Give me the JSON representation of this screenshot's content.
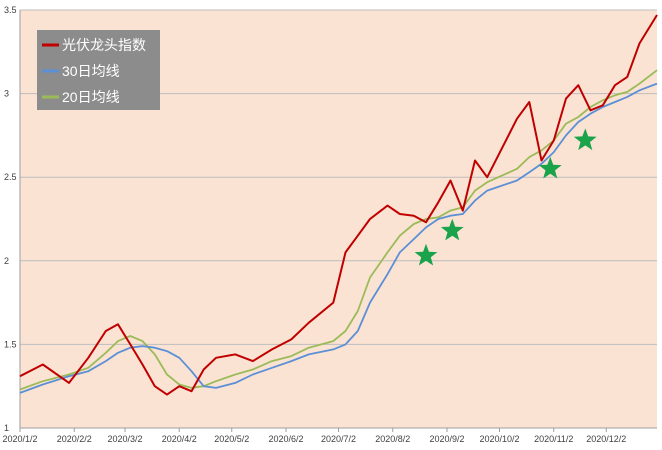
{
  "chart_data": {
    "type": "line",
    "title": "",
    "xlabel": "",
    "ylabel": "",
    "ylim": [
      1,
      3.5
    ],
    "yticks": [
      "1",
      "1.5",
      "2",
      "2.5",
      "3",
      "3.5"
    ],
    "xticks": [
      "2020/1/2",
      "2020/2/2",
      "2020/3/2",
      "2020/4/2",
      "2020/5/2",
      "2020/6/2",
      "2020/7/2",
      "2020/8/2",
      "2020/9/2",
      "2020/10/2",
      "2020/11/2",
      "2020/12/2"
    ],
    "grid": "horizontal",
    "legend_position": "top-left",
    "plot_background": "#fbe3d3",
    "x": [
      "2020-01-02",
      "2020-01-15",
      "2020-01-30",
      "2020-02-10",
      "2020-02-20",
      "2020-02-27",
      "2020-03-05",
      "2020-03-12",
      "2020-03-19",
      "2020-03-26",
      "2020-04-02",
      "2020-04-09",
      "2020-04-16",
      "2020-04-23",
      "2020-05-04",
      "2020-05-14",
      "2020-05-25",
      "2020-06-05",
      "2020-06-15",
      "2020-06-29",
      "2020-07-06",
      "2020-07-13",
      "2020-07-20",
      "2020-07-30",
      "2020-08-06",
      "2020-08-14",
      "2020-08-21",
      "2020-08-28",
      "2020-09-04",
      "2020-09-11",
      "2020-09-18",
      "2020-09-25",
      "2020-10-12",
      "2020-10-19",
      "2020-10-26",
      "2020-11-02",
      "2020-11-09",
      "2020-11-16",
      "2020-11-23",
      "2020-11-30",
      "2020-12-07",
      "2020-12-14",
      "2020-12-21",
      "2020-12-31"
    ],
    "series": [
      {
        "name": "光伏龙头指数",
        "color": "#c00000",
        "values": [
          1.31,
          1.38,
          1.27,
          1.42,
          1.58,
          1.62,
          1.5,
          1.38,
          1.25,
          1.2,
          1.25,
          1.22,
          1.35,
          1.42,
          1.44,
          1.4,
          1.47,
          1.53,
          1.63,
          1.75,
          2.05,
          2.15,
          2.25,
          2.33,
          2.28,
          2.27,
          2.23,
          2.35,
          2.48,
          2.3,
          2.6,
          2.5,
          2.85,
          2.95,
          2.6,
          2.72,
          2.97,
          3.05,
          2.9,
          2.93,
          3.05,
          3.1,
          3.3,
          3.47
        ]
      },
      {
        "name": "30日均线",
        "color": "#5b8fd6",
        "values": [
          1.21,
          1.26,
          1.31,
          1.34,
          1.4,
          1.45,
          1.48,
          1.49,
          1.48,
          1.46,
          1.42,
          1.34,
          1.25,
          1.24,
          1.27,
          1.32,
          1.36,
          1.4,
          1.44,
          1.47,
          1.5,
          1.58,
          1.75,
          1.92,
          2.05,
          2.13,
          2.2,
          2.25,
          2.27,
          2.28,
          2.36,
          2.42,
          2.48,
          2.53,
          2.58,
          2.65,
          2.75,
          2.83,
          2.88,
          2.92,
          2.95,
          2.98,
          3.02,
          3.06
        ]
      },
      {
        "name": "20日均线",
        "color": "#9bbb59",
        "values": [
          1.23,
          1.28,
          1.32,
          1.36,
          1.45,
          1.52,
          1.55,
          1.52,
          1.44,
          1.32,
          1.26,
          1.24,
          1.25,
          1.28,
          1.32,
          1.35,
          1.4,
          1.43,
          1.48,
          1.52,
          1.58,
          1.7,
          1.9,
          2.05,
          2.15,
          2.22,
          2.25,
          2.26,
          2.3,
          2.32,
          2.42,
          2.47,
          2.55,
          2.62,
          2.66,
          2.72,
          2.82,
          2.86,
          2.92,
          2.96,
          2.99,
          3.01,
          3.06,
          3.14
        ]
      }
    ],
    "markers": [
      {
        "shape": "star",
        "color": "#1aa34a",
        "x": "2020-08-21",
        "y": 2.03
      },
      {
        "shape": "star",
        "color": "#1aa34a",
        "x": "2020-09-05",
        "y": 2.18
      },
      {
        "shape": "star",
        "color": "#1aa34a",
        "x": "2020-10-31",
        "y": 2.55
      },
      {
        "shape": "star",
        "color": "#1aa34a",
        "x": "2020-11-20",
        "y": 2.72
      }
    ]
  }
}
